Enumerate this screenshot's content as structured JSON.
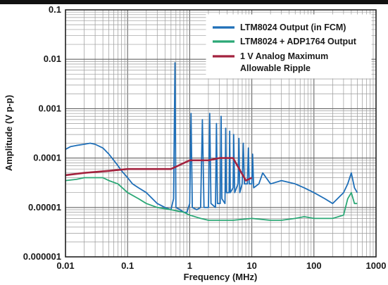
{
  "chart_data": {
    "type": "line",
    "xscale": "log",
    "yscale": "log",
    "xlim": [
      0.01,
      1000
    ],
    "ylim": [
      1e-06,
      0.1
    ],
    "xlabel": "Frequency (MHz)",
    "ylabel": "Amplitude (V p-p)",
    "xticks": [
      "0.01",
      "0.1",
      "1",
      "10",
      "100",
      "1000"
    ],
    "yticks": [
      "0.1",
      "0.01",
      "0.001",
      "0.0001",
      "0.00001",
      "0.000001"
    ],
    "grid": true,
    "legend_position": "top-right",
    "series": [
      {
        "name": "LTM8024 Output (in FCM)",
        "color": "#1f6fb8",
        "points": [
          [
            0.01,
            0.00015
          ],
          [
            0.012,
            0.00017
          ],
          [
            0.015,
            0.00018
          ],
          [
            0.02,
            0.00019
          ],
          [
            0.025,
            0.0002
          ],
          [
            0.03,
            0.00019
          ],
          [
            0.04,
            0.00016
          ],
          [
            0.05,
            0.00012
          ],
          [
            0.06,
            9e-05
          ],
          [
            0.07,
            7e-05
          ],
          [
            0.08,
            5.5e-05
          ],
          [
            0.1,
            4e-05
          ],
          [
            0.12,
            3e-05
          ],
          [
            0.15,
            2.5e-05
          ],
          [
            0.2,
            2e-05
          ],
          [
            0.3,
            1.2e-05
          ],
          [
            0.4,
            1e-05
          ],
          [
            0.5,
            9e-06
          ],
          [
            0.55,
            1.5e-05
          ],
          [
            0.58,
            0.0085
          ],
          [
            0.6,
            1e-05
          ],
          [
            0.7,
            9e-06
          ],
          [
            0.8,
            8e-06
          ],
          [
            0.9,
            8e-06
          ],
          [
            1,
            1.2e-05
          ],
          [
            1.05,
            0.0008
          ],
          [
            1.1,
            1e-05
          ],
          [
            1.3,
            9e-06
          ],
          [
            1.5,
            1e-05
          ],
          [
            1.6,
            0.0006
          ],
          [
            1.7,
            1e-05
          ],
          [
            2,
            1e-05
          ],
          [
            2.1,
            0.0008
          ],
          [
            2.2,
            1.2e-05
          ],
          [
            2.6,
            1e-05
          ],
          [
            2.7,
            0.0005
          ],
          [
            2.8,
            1.2e-05
          ],
          [
            3.1,
            1.2e-05
          ],
          [
            3.2,
            0.0007
          ],
          [
            3.3,
            1.5e-05
          ],
          [
            3.7,
            1.2e-05
          ],
          [
            3.8,
            0.0004
          ],
          [
            3.9,
            2e-05
          ],
          [
            4.3,
            2e-05
          ],
          [
            4.4,
            0.00035
          ],
          [
            4.5,
            2e-05
          ],
          [
            5,
            2.5e-05
          ],
          [
            5.1,
            0.0003
          ],
          [
            5.3,
            2e-05
          ],
          [
            6,
            3e-05
          ],
          [
            6.2,
            0.00025
          ],
          [
            6.4,
            2e-05
          ],
          [
            7,
            3e-05
          ],
          [
            7.3,
            0.0002
          ],
          [
            7.6,
            3e-05
          ],
          [
            8.5,
            3e-05
          ],
          [
            8.8,
            0.00016
          ],
          [
            9.1,
            3e-05
          ],
          [
            10,
            3e-05
          ],
          [
            10.3,
            0.00012
          ],
          [
            10.7,
            2.5e-05
          ],
          [
            13,
            3e-05
          ],
          [
            15,
            5e-05
          ],
          [
            20,
            3e-05
          ],
          [
            30,
            3.5e-05
          ],
          [
            50,
            3e-05
          ],
          [
            70,
            2.5e-05
          ],
          [
            100,
            2e-05
          ],
          [
            150,
            1.5e-05
          ],
          [
            200,
            1.2e-05
          ],
          [
            300,
            2e-05
          ],
          [
            350,
            3e-05
          ],
          [
            400,
            5e-05
          ],
          [
            450,
            2.5e-05
          ],
          [
            500,
            2e-05
          ]
        ]
      },
      {
        "name": "LTM8024 + ADP1764 Output",
        "color": "#2ba876",
        "points": [
          [
            0.01,
            3.5e-05
          ],
          [
            0.015,
            3.7e-05
          ],
          [
            0.02,
            4e-05
          ],
          [
            0.03,
            4e-05
          ],
          [
            0.04,
            4e-05
          ],
          [
            0.05,
            3.5e-05
          ],
          [
            0.07,
            3e-05
          ],
          [
            0.1,
            2e-05
          ],
          [
            0.15,
            1.5e-05
          ],
          [
            0.2,
            1.2e-05
          ],
          [
            0.3,
            1e-05
          ],
          [
            0.5,
            9e-06
          ],
          [
            0.8,
            8e-06
          ],
          [
            1,
            7e-06
          ],
          [
            1.5,
            6e-06
          ],
          [
            2,
            5.5e-06
          ],
          [
            3,
            5.5e-06
          ],
          [
            5,
            5.5e-06
          ],
          [
            10,
            6e-06
          ],
          [
            20,
            5.5e-06
          ],
          [
            30,
            5.5e-06
          ],
          [
            50,
            6e-06
          ],
          [
            70,
            6.5e-06
          ],
          [
            100,
            6e-06
          ],
          [
            200,
            6e-06
          ],
          [
            300,
            7e-06
          ],
          [
            350,
            1.5e-05
          ],
          [
            400,
            2e-05
          ],
          [
            450,
            1.2e-05
          ],
          [
            500,
            1.2e-05
          ]
        ]
      },
      {
        "name": "1 V Analog Maximum Allowable Ripple",
        "color": "#a3223e",
        "points": [
          [
            0.01,
            4.5e-05
          ],
          [
            0.02,
            5e-05
          ],
          [
            0.05,
            5.5e-05
          ],
          [
            0.1,
            6e-05
          ],
          [
            0.5,
            6e-05
          ],
          [
            1,
            9e-05
          ],
          [
            2,
            9e-05
          ],
          [
            3,
            0.0001
          ],
          [
            5,
            0.0001
          ],
          [
            8,
            3.5e-05
          ],
          [
            10,
            4e-05
          ]
        ]
      }
    ]
  }
}
